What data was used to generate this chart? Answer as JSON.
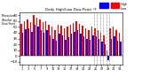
{
  "title": "Daily High/Low Dew Point °F",
  "left_label": "Milwaukee\nWeather\nDew Point",
  "high_color": "#ff0000",
  "low_color": "#0000ff",
  "background_color": "#ffffff",
  "ylim": [
    -15,
    75
  ],
  "yticks": [
    -10,
    0,
    10,
    20,
    30,
    40,
    50,
    60,
    70
  ],
  "high_values": [
    55,
    60,
    62,
    58,
    70,
    65,
    62,
    58,
    60,
    54,
    50,
    44,
    54,
    52,
    48,
    50,
    54,
    57,
    60,
    55,
    52,
    48,
    45,
    50,
    48,
    45,
    40,
    35,
    10,
    48,
    50,
    44,
    40
  ],
  "low_values": [
    40,
    46,
    48,
    42,
    54,
    50,
    45,
    40,
    44,
    36,
    30,
    26,
    38,
    35,
    28,
    32,
    38,
    42,
    44,
    38,
    34,
    30,
    28,
    36,
    34,
    30,
    25,
    20,
    -8,
    30,
    34,
    26,
    24
  ],
  "x_labels": [
    "1",
    "",
    "3",
    "",
    "5",
    "",
    "7",
    "",
    "9",
    "",
    "11",
    "",
    "13",
    "",
    "15",
    "",
    "17",
    "",
    "19",
    "",
    "21",
    "",
    "23",
    "",
    "25",
    "",
    "27",
    "",
    "29",
    "",
    "31",
    "",
    "33"
  ],
  "bar_width": 0.42,
  "dashed_lines": [
    23.5,
    24.5,
    25.5,
    26.5,
    27.5,
    28.5
  ],
  "legend_patches": [
    {
      "color": "#0000ff",
      "label": "Low"
    },
    {
      "color": "#ff0000",
      "label": "High"
    }
  ]
}
